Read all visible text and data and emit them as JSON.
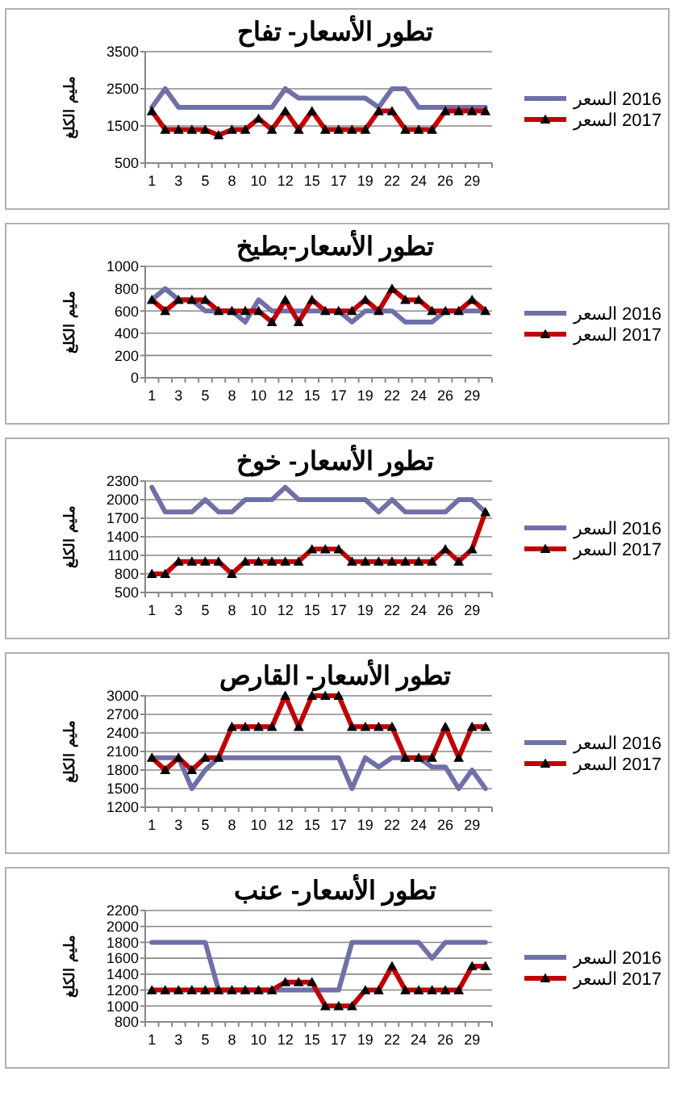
{
  "chart_data": [
    {
      "type": "line",
      "title": "تطور الأسعار- تفاح",
      "ylabel": "مليم الكلغ",
      "categories": [
        "1",
        null,
        "3",
        null,
        "5",
        null,
        "8",
        null,
        "10",
        null,
        "12",
        null,
        "15",
        null,
        "17",
        null,
        "19",
        null,
        "22",
        null,
        "24",
        null,
        "26",
        null,
        "29",
        null
      ],
      "ylim": [
        500,
        3500
      ],
      "yticks": [
        500,
        1500,
        2500,
        3500
      ],
      "grid": "y",
      "legend": "right",
      "series": [
        {
          "name": "2016 السعر",
          "color": "#7070a8",
          "marker": "none",
          "values": [
            2000,
            2500,
            2000,
            2000,
            2000,
            2000,
            2000,
            2000,
            2000,
            2000,
            2500,
            2250,
            2250,
            2250,
            2250,
            2250,
            2250,
            2000,
            2500,
            2500,
            2000,
            2000,
            2000,
            2000,
            2000,
            2000
          ]
        },
        {
          "name": "2017 السعر",
          "color": "#c00000",
          "marker": "triangle",
          "values": [
            1900,
            1400,
            1400,
            1400,
            1400,
            1250,
            1400,
            1400,
            1700,
            1400,
            1900,
            1400,
            1900,
            1400,
            1400,
            1400,
            1400,
            1900,
            1900,
            1400,
            1400,
            1400,
            1900,
            1900,
            1900,
            1900
          ]
        }
      ]
    },
    {
      "type": "line",
      "title": "تطور الأسعار-بطيخ",
      "ylabel": "مليم الكلغ",
      "categories": [
        "1",
        null,
        "3",
        null,
        "5",
        null,
        "8",
        null,
        "10",
        null,
        "12",
        null,
        "15",
        null,
        "17",
        null,
        "19",
        null,
        "22",
        null,
        "24",
        null,
        "26",
        null,
        "29",
        null
      ],
      "ylim": [
        0,
        1000
      ],
      "yticks": [
        0,
        200,
        400,
        600,
        800,
        1000
      ],
      "grid": "y",
      "legend": "right",
      "series": [
        {
          "name": "2016 السعر",
          "color": "#7070a8",
          "marker": "none",
          "values": [
            700,
            800,
            700,
            700,
            600,
            600,
            600,
            500,
            700,
            600,
            600,
            600,
            600,
            600,
            600,
            500,
            600,
            600,
            600,
            500,
            500,
            500,
            600,
            600,
            600,
            600
          ]
        },
        {
          "name": "2017 السعر",
          "color": "#c00000",
          "marker": "triangle",
          "values": [
            700,
            600,
            700,
            700,
            700,
            600,
            600,
            600,
            600,
            500,
            700,
            500,
            700,
            600,
            600,
            600,
            700,
            600,
            800,
            700,
            700,
            600,
            600,
            600,
            700,
            600
          ]
        }
      ]
    },
    {
      "type": "line",
      "title": "تطور الأسعار- خوخ",
      "ylabel": "مليم الكلغ",
      "categories": [
        "1",
        null,
        "3",
        null,
        "5",
        null,
        "8",
        null,
        "10",
        null,
        "12",
        null,
        "15",
        null,
        "17",
        null,
        "19",
        null,
        "22",
        null,
        "24",
        null,
        "26",
        null,
        "29",
        null
      ],
      "ylim": [
        500,
        2300
      ],
      "yticks": [
        500,
        800,
        1100,
        1400,
        1700,
        2000,
        2300
      ],
      "grid": "y",
      "legend": "right",
      "series": [
        {
          "name": "2016 السعر",
          "color": "#7070a8",
          "marker": "none",
          "values": [
            2200,
            1800,
            1800,
            1800,
            2000,
            1800,
            1800,
            2000,
            2000,
            2000,
            2200,
            2000,
            2000,
            2000,
            2000,
            2000,
            2000,
            1800,
            2000,
            1800,
            1800,
            1800,
            1800,
            2000,
            2000,
            1800
          ]
        },
        {
          "name": "2017 السعر",
          "color": "#c00000",
          "marker": "triangle",
          "values": [
            800,
            800,
            1000,
            1000,
            1000,
            1000,
            800,
            1000,
            1000,
            1000,
            1000,
            1000,
            1200,
            1200,
            1200,
            1000,
            1000,
            1000,
            1000,
            1000,
            1000,
            1000,
            1200,
            1000,
            1200,
            1800
          ]
        }
      ]
    },
    {
      "type": "line",
      "title": "تطور الأسعار- القارص",
      "ylabel": "مليم الكلغ",
      "categories": [
        "1",
        null,
        "3",
        null,
        "5",
        null,
        "8",
        null,
        "10",
        null,
        "12",
        null,
        "15",
        null,
        "17",
        null,
        "19",
        null,
        "22",
        null,
        "24",
        null,
        "26",
        null,
        "29",
        null
      ],
      "ylim": [
        1200,
        3000
      ],
      "yticks": [
        1200,
        1500,
        1800,
        2100,
        2400,
        2700,
        3000
      ],
      "grid": "y",
      "legend": "right",
      "series": [
        {
          "name": "2016 السعر",
          "color": "#7070a8",
          "marker": "none",
          "values": [
            2000,
            2000,
            2000,
            1500,
            1800,
            2000,
            2000,
            2000,
            2000,
            2000,
            2000,
            2000,
            2000,
            2000,
            2000,
            1500,
            2000,
            1850,
            2000,
            2000,
            2000,
            1850,
            1850,
            1500,
            1800,
            1500
          ]
        },
        {
          "name": "2017 السعر",
          "color": "#c00000",
          "marker": "triangle",
          "values": [
            2000,
            1800,
            2000,
            1800,
            2000,
            2000,
            2500,
            2500,
            2500,
            2500,
            3000,
            2500,
            3000,
            3000,
            3000,
            2500,
            2500,
            2500,
            2500,
            2000,
            2000,
            2000,
            2500,
            2000,
            2500,
            2500
          ]
        }
      ]
    },
    {
      "type": "line",
      "title": "تطور الأسعار- عنب",
      "ylabel": "مليم الكلغ",
      "categories": [
        "1",
        null,
        "3",
        null,
        "5",
        null,
        "8",
        null,
        "10",
        null,
        "12",
        null,
        "15",
        null,
        "17",
        null,
        "19",
        null,
        "22",
        null,
        "24",
        null,
        "26",
        null,
        "29",
        null
      ],
      "ylim": [
        800,
        2200
      ],
      "yticks": [
        800,
        1000,
        1200,
        1400,
        1600,
        1800,
        2000,
        2200
      ],
      "grid": "y",
      "legend": "right",
      "series": [
        {
          "name": "2016 السعر",
          "color": "#7070a8",
          "marker": "none",
          "values": [
            1800,
            1800,
            1800,
            1800,
            1800,
            1200,
            1200,
            1200,
            1200,
            1200,
            1200,
            1200,
            1200,
            1200,
            1200,
            1800,
            1800,
            1800,
            1800,
            1800,
            1800,
            1600,
            1800,
            1800,
            1800,
            1800
          ]
        },
        {
          "name": "2017 السعر",
          "color": "#c00000",
          "marker": "triangle",
          "values": [
            1200,
            1200,
            1200,
            1200,
            1200,
            1200,
            1200,
            1200,
            1200,
            1200,
            1300,
            1300,
            1300,
            1000,
            1000,
            1000,
            1200,
            1200,
            1500,
            1200,
            1200,
            1200,
            1200,
            1200,
            1500,
            1500
          ]
        }
      ]
    }
  ]
}
